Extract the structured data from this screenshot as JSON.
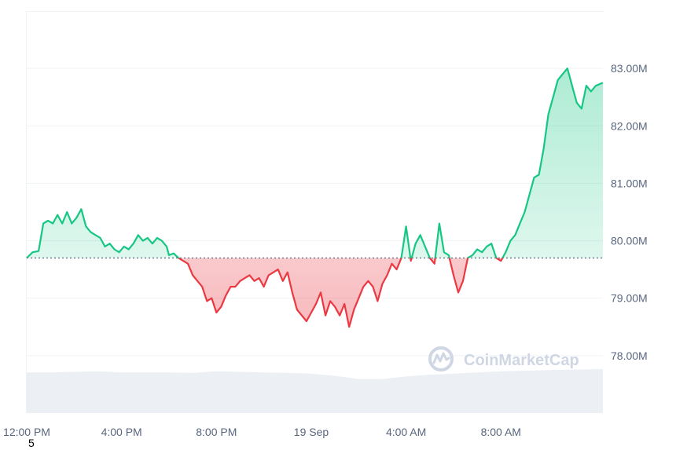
{
  "chart_data": {
    "type": "area",
    "baseline": 79.7,
    "ylim": [
      77.0,
      84.0
    ],
    "y_ticks": [
      78,
      79,
      80,
      81,
      82,
      83
    ],
    "y_tick_labels": [
      "78.00M",
      "79.00M",
      "80.00M",
      "81.00M",
      "82.00M",
      "83.00M"
    ],
    "x_range": [
      0,
      24.3
    ],
    "x_ticks": [
      0,
      4,
      8,
      12,
      16,
      20
    ],
    "x_tick_labels": [
      "12:00 PM",
      "4:00 PM",
      "8:00 PM",
      "19 Sep",
      "4:00 AM",
      "8:00 AM"
    ],
    "colors": {
      "up": "#16c784",
      "down": "#ea3943",
      "grid": "#eff2f5",
      "volume": "#eceff4"
    },
    "series": [
      {
        "x": [
          0.0,
          0.25,
          0.5,
          0.7,
          0.9,
          1.1,
          1.3,
          1.5,
          1.7,
          1.9,
          2.1,
          2.3,
          2.5,
          2.7,
          2.9,
          3.1,
          3.3,
          3.5,
          3.7,
          3.9,
          4.1,
          4.3,
          4.5,
          4.7,
          4.9,
          5.1,
          5.3,
          5.5,
          5.7,
          5.9,
          6.0,
          6.2,
          6.4,
          6.6,
          6.8,
          7.0,
          7.2,
          7.4,
          7.6,
          7.8,
          8.0,
          8.2,
          8.4,
          8.6,
          8.8,
          9.0,
          9.2,
          9.4,
          9.6,
          9.8,
          10.0,
          10.2,
          10.4,
          10.6,
          10.8,
          11.0,
          11.2,
          11.4,
          11.6,
          11.8,
          12.0,
          12.2,
          12.4,
          12.6,
          12.8,
          13.0,
          13.2,
          13.4,
          13.6,
          13.8,
          14.0,
          14.2,
          14.4,
          14.6,
          14.8,
          15.0,
          15.2,
          15.4,
          15.6,
          15.8,
          16.0,
          16.2,
          16.4,
          16.6,
          16.8,
          17.0,
          17.2,
          17.4,
          17.6,
          17.8,
          18.0,
          18.2,
          18.4,
          18.6,
          18.8,
          19.0,
          19.2,
          19.4,
          19.6,
          19.8,
          20.0,
          20.2,
          20.4,
          20.6,
          20.8,
          21.0,
          21.2,
          21.4,
          21.6,
          21.8,
          22.0,
          22.2,
          22.4,
          22.6,
          22.8,
          23.0,
          23.2,
          23.4,
          23.6,
          23.8,
          24.0,
          24.3
        ],
        "y": [
          79.7,
          79.8,
          79.82,
          80.3,
          80.35,
          80.3,
          80.45,
          80.3,
          80.5,
          80.3,
          80.4,
          80.55,
          80.25,
          80.15,
          80.1,
          80.05,
          79.9,
          79.95,
          79.85,
          79.8,
          79.9,
          79.85,
          79.95,
          80.1,
          80.0,
          80.05,
          79.95,
          80.05,
          80.0,
          79.9,
          79.75,
          79.78,
          79.7,
          79.65,
          79.6,
          79.4,
          79.3,
          79.2,
          78.95,
          79.0,
          78.75,
          78.85,
          79.05,
          79.2,
          79.2,
          79.3,
          79.35,
          79.4,
          79.3,
          79.35,
          79.2,
          79.4,
          79.45,
          79.5,
          79.3,
          79.45,
          79.1,
          78.8,
          78.7,
          78.6,
          78.75,
          78.9,
          79.1,
          78.7,
          78.95,
          78.85,
          78.7,
          78.9,
          78.5,
          78.8,
          79.0,
          79.2,
          79.3,
          79.2,
          78.95,
          79.25,
          79.4,
          79.6,
          79.5,
          79.7,
          80.25,
          79.65,
          79.95,
          80.1,
          79.9,
          79.7,
          79.6,
          80.3,
          79.8,
          79.75,
          79.4,
          79.1,
          79.3,
          79.7,
          79.75,
          79.85,
          79.8,
          79.9,
          79.95,
          79.7,
          79.65,
          79.8,
          80.0,
          80.1,
          80.3,
          80.5,
          80.8,
          81.1,
          81.15,
          81.6,
          82.2,
          82.5,
          82.8,
          82.9,
          83.0,
          82.7,
          82.4,
          82.3,
          82.7,
          82.6,
          82.7,
          82.75
        ]
      }
    ],
    "volume": {
      "x": [
        0,
        1,
        2,
        3,
        4,
        5,
        6,
        7,
        8,
        9,
        10,
        11,
        12,
        13,
        14,
        15,
        16,
        17,
        18,
        19,
        20,
        21,
        22,
        23,
        24.3
      ],
      "y": [
        0.72,
        0.72,
        0.73,
        0.74,
        0.72,
        0.72,
        0.72,
        0.71,
        0.74,
        0.73,
        0.72,
        0.71,
        0.7,
        0.66,
        0.6,
        0.6,
        0.65,
        0.68,
        0.7,
        0.72,
        0.74,
        0.75,
        0.76,
        0.77,
        0.78
      ]
    },
    "watermark": "CoinMarketCap",
    "footnote": "5"
  }
}
